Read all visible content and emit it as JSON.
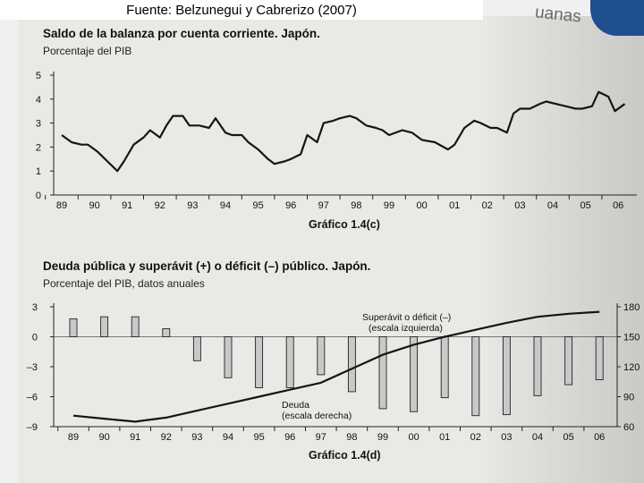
{
  "source_caption": "Fuente: Belzunegui y Cabrerizo (2007)",
  "corner_text": "uanas",
  "chart_data": [
    {
      "type": "line",
      "title": "Saldo de la balanza por cuenta corriente. Japón.",
      "subtitle": "Porcentaje del PIB",
      "figure_label": "Gráfico 1.4(c)",
      "categories": [
        "89",
        "90",
        "91",
        "92",
        "93",
        "94",
        "95",
        "96",
        "97",
        "98",
        "99",
        "00",
        "01",
        "02",
        "03",
        "04",
        "05",
        "06"
      ],
      "ylim": [
        0,
        5
      ],
      "yticks": [
        0,
        1,
        2,
        3,
        4,
        5
      ],
      "grid": false,
      "series": [
        {
          "x": [
            89.0,
            89.3,
            89.6,
            89.8,
            90.1,
            90.4,
            90.7,
            90.9,
            91.2,
            91.5,
            91.7,
            92.0,
            92.2,
            92.4,
            92.7,
            92.9,
            93.2,
            93.5,
            93.7,
            94.0,
            94.2,
            94.5,
            94.7,
            95.0,
            95.3,
            95.5,
            95.8,
            96.0,
            96.3,
            96.5,
            96.8,
            97.0,
            97.3,
            97.5,
            97.8,
            98.0,
            98.3,
            98.6,
            98.8,
            99.0,
            99.4,
            99.7,
            100.0,
            100.4,
            100.8,
            101.0,
            101.3,
            101.6,
            101.8,
            102.1,
            102.3,
            102.6,
            102.8,
            103.0,
            103.3,
            103.6,
            103.8,
            104.1,
            104.4,
            104.7,
            104.9,
            105.2,
            105.4,
            105.7,
            105.9,
            106.2
          ],
          "values": [
            2.5,
            2.2,
            2.1,
            2.1,
            1.8,
            1.4,
            1.0,
            1.4,
            2.1,
            2.4,
            2.7,
            2.4,
            2.9,
            3.3,
            3.3,
            2.9,
            2.9,
            2.8,
            3.2,
            2.6,
            2.5,
            2.5,
            2.2,
            1.9,
            1.5,
            1.3,
            1.4,
            1.5,
            1.7,
            2.5,
            2.2,
            3.0,
            3.1,
            3.2,
            3.3,
            3.2,
            2.9,
            2.8,
            2.7,
            2.5,
            2.7,
            2.6,
            2.3,
            2.2,
            1.9,
            2.1,
            2.8,
            3.1,
            3.0,
            2.8,
            2.8,
            2.6,
            3.4,
            3.6,
            3.6,
            3.8,
            3.9,
            3.8,
            3.7,
            3.6,
            3.6,
            3.7,
            4.3,
            4.1,
            3.5,
            3.8
          ]
        }
      ]
    },
    {
      "type": "bar",
      "title": "Deuda pública y superávit (+) o déficit (–) público. Japón.",
      "subtitle": "Porcentaje del PIB, datos anuales",
      "figure_label": "Gráfico 1.4(d)",
      "categories": [
        "89",
        "90",
        "91",
        "92",
        "93",
        "94",
        "95",
        "96",
        "97",
        "98",
        "99",
        "00",
        "01",
        "02",
        "03",
        "04",
        "05",
        "06"
      ],
      "ylim_left": [
        -9,
        3
      ],
      "yticks_left": [
        "3",
        "0",
        "–3",
        "–6",
        "–9"
      ],
      "ylim_right": [
        60,
        180
      ],
      "yticks_right": [
        "180",
        "150",
        "120",
        "90",
        "60"
      ],
      "series": [
        {
          "name": "Superávit o déficit (–) (escala izquierda)",
          "axis": "left",
          "values": [
            1.8,
            2.0,
            2.0,
            0.8,
            -2.4,
            -4.1,
            -5.1,
            -5.1,
            -3.8,
            -5.5,
            -7.2,
            -7.5,
            -6.1,
            -7.9,
            -7.8,
            -5.9,
            -4.8,
            -4.3
          ]
        },
        {
          "name": "Deuda (escala derecha)",
          "axis": "right",
          "values": [
            71,
            68,
            65,
            69,
            76,
            83,
            90,
            97,
            104,
            118,
            132,
            142,
            150,
            157,
            164,
            170,
            173,
            175
          ]
        }
      ],
      "annotations": {
        "surplus_line1": "Superávit o déficit (–)",
        "surplus_line2": "(escala izquierda)",
        "debt_line1": "Deuda",
        "debt_line2": "(escala derecha)"
      }
    }
  ]
}
